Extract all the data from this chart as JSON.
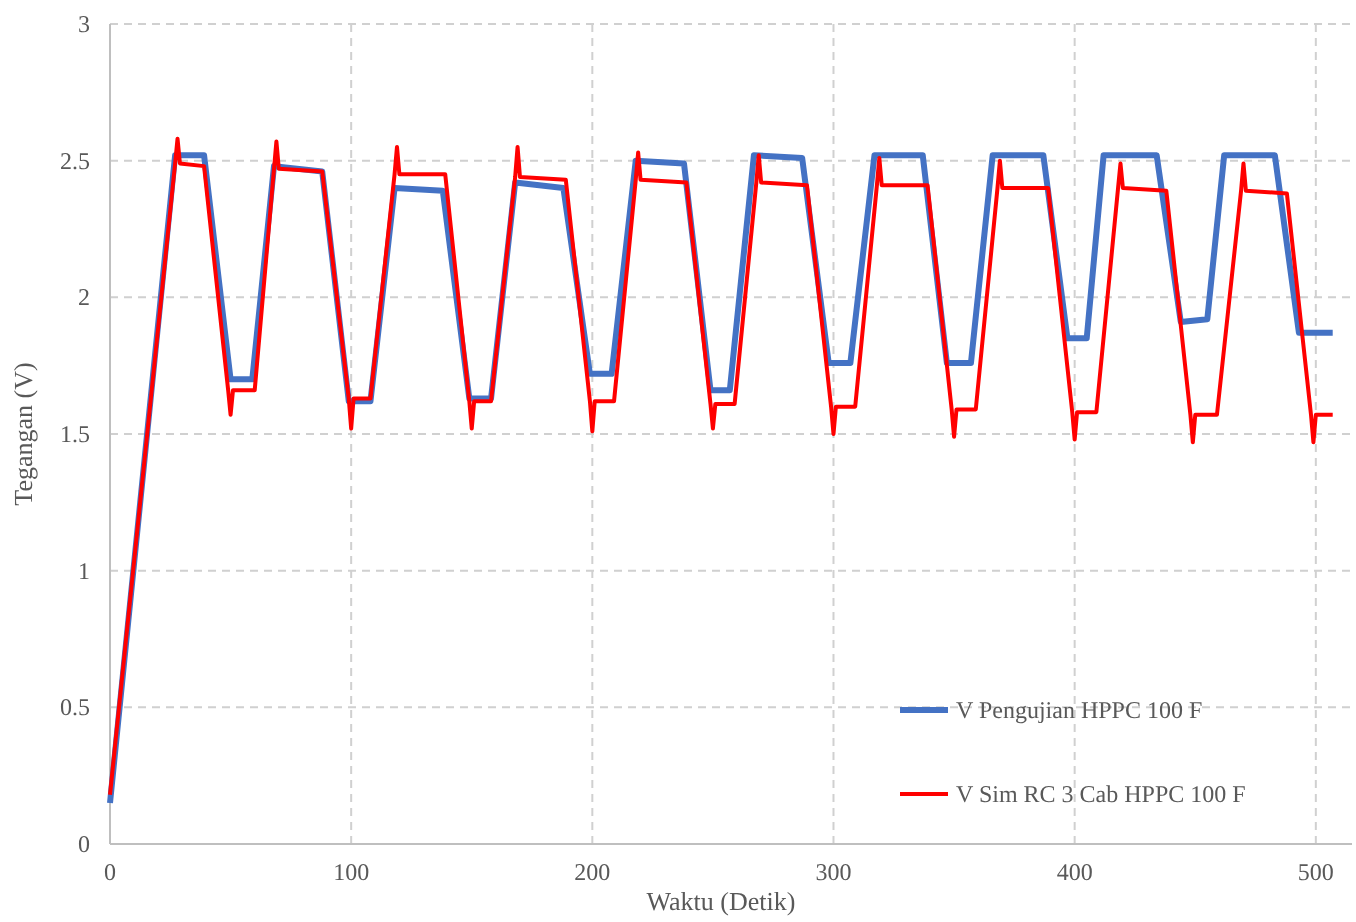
{
  "chart_data": {
    "type": "line",
    "xlabel": "Waktu (Detik)",
    "ylabel": "Tegangan (V)",
    "xlim": [
      0,
      515
    ],
    "ylim": [
      0,
      3
    ],
    "xticks": [
      0,
      100,
      200,
      300,
      400,
      500
    ],
    "yticks": [
      0,
      0.5,
      1,
      1.5,
      2,
      2.5,
      3
    ],
    "grid": true,
    "legend": "bottom right",
    "line_style": "solid",
    "series": [
      {
        "name": "V Pengujian HPPC 100 F",
        "color": "#4472c4",
        "x": [
          0,
          27,
          39,
          50,
          59,
          68,
          88,
          99,
          108,
          118,
          138,
          149,
          158,
          168,
          188,
          199,
          208,
          218,
          238,
          249,
          257,
          267,
          287,
          298,
          307,
          317,
          337,
          347,
          357,
          366,
          387,
          397,
          405,
          412,
          434,
          444,
          455,
          462,
          483,
          493,
          507
        ],
        "values": [
          0.15,
          2.52,
          2.52,
          1.7,
          1.7,
          2.48,
          2.46,
          1.62,
          1.62,
          2.4,
          2.39,
          1.63,
          1.63,
          2.42,
          2.4,
          1.72,
          1.72,
          2.5,
          2.49,
          1.66,
          1.66,
          2.52,
          2.51,
          1.76,
          1.76,
          2.52,
          2.52,
          1.76,
          1.76,
          2.52,
          2.52,
          1.85,
          1.85,
          2.52,
          2.52,
          1.91,
          1.92,
          2.52,
          2.52,
          1.87,
          1.87
        ]
      },
      {
        "name": "V Sim RC 3 Cab HPPC 100 F",
        "color": "#ff0000",
        "x": [
          0,
          27,
          28,
          29,
          39,
          49,
          50,
          51,
          60,
          68,
          69,
          70,
          88,
          99,
          100,
          101,
          108,
          118,
          119,
          120,
          139,
          149,
          150,
          151,
          158,
          168,
          169,
          170,
          189,
          199,
          200,
          201,
          209,
          218,
          219,
          220,
          239,
          249,
          250,
          251,
          259,
          268,
          269,
          270,
          289,
          299,
          300,
          301,
          309,
          318,
          319,
          320,
          339,
          349,
          350,
          351,
          359,
          368,
          369,
          370,
          389,
          399,
          400,
          401,
          409,
          418,
          419,
          420,
          438,
          448,
          449,
          450,
          459,
          469,
          470,
          471,
          488,
          498,
          499,
          500,
          507
        ],
        "values": [
          0.18,
          2.49,
          2.58,
          2.49,
          2.48,
          1.66,
          1.57,
          1.66,
          1.66,
          2.47,
          2.57,
          2.47,
          2.46,
          1.63,
          1.52,
          1.63,
          1.63,
          2.45,
          2.55,
          2.45,
          2.45,
          1.62,
          1.52,
          1.62,
          1.62,
          2.44,
          2.55,
          2.44,
          2.43,
          1.62,
          1.51,
          1.62,
          1.62,
          2.43,
          2.53,
          2.43,
          2.42,
          1.61,
          1.52,
          1.61,
          1.61,
          2.42,
          2.52,
          2.42,
          2.41,
          1.6,
          1.5,
          1.6,
          1.6,
          2.41,
          2.51,
          2.41,
          2.41,
          1.59,
          1.49,
          1.59,
          1.59,
          2.4,
          2.5,
          2.4,
          2.4,
          1.58,
          1.48,
          1.58,
          1.58,
          2.4,
          2.49,
          2.4,
          2.39,
          1.57,
          1.47,
          1.57,
          1.57,
          2.39,
          2.49,
          2.39,
          2.38,
          1.57,
          1.47,
          1.57,
          1.57
        ]
      }
    ]
  }
}
